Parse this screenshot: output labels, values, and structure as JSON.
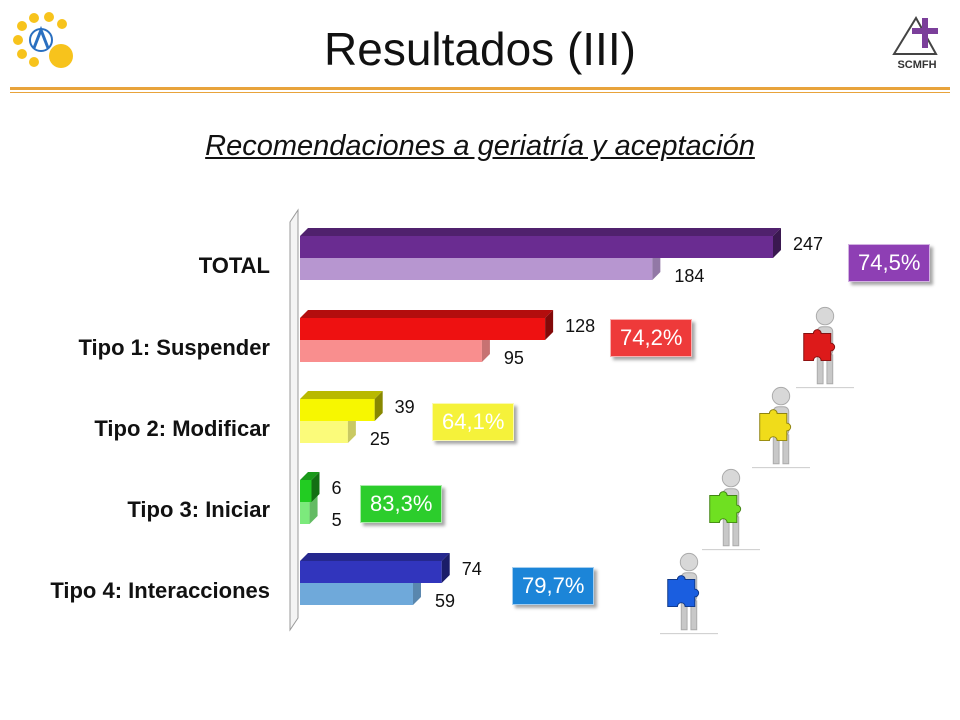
{
  "header": {
    "title": "Resultados (III)",
    "subtitle": "Recomendaciones a geriatría y aceptación",
    "right_logo_text": "SCMFH"
  },
  "chart_data": {
    "type": "bar",
    "orientation": "horizontal",
    "categories": [
      "TOTAL",
      "Tipo 1: Suspender",
      "Tipo 2: Modificar",
      "Tipo 3: Iniciar",
      "Tipo 4: Interacciones"
    ],
    "series": [
      {
        "values": [
          247,
          128,
          39,
          6,
          74
        ]
      },
      {
        "values": [
          184,
          95,
          25,
          5,
          59
        ]
      }
    ],
    "xlim": [
      0,
      260
    ],
    "colors": {
      "front": [
        "#6a2c91",
        "#ee1111",
        "#f7f700",
        "#22cc22",
        "#3135bd"
      ],
      "back": [
        "#b796d0",
        "#f98e8e",
        "#fbfb7a",
        "#7cea7c",
        "#6fa9da"
      ]
    },
    "percentages": [
      "74,5%",
      "74,2%",
      "64,1%",
      "83,3%",
      "79,7%"
    ],
    "percentage_colors": [
      "#8e3fb4",
      "#ee3a3a",
      "#f5f23a",
      "#2ccd2c",
      "#1c85d8"
    ],
    "puzzle_colors": [
      "#dd1a1a",
      "#f0dc1a",
      "#6fe021",
      "#1a5ee0"
    ]
  }
}
